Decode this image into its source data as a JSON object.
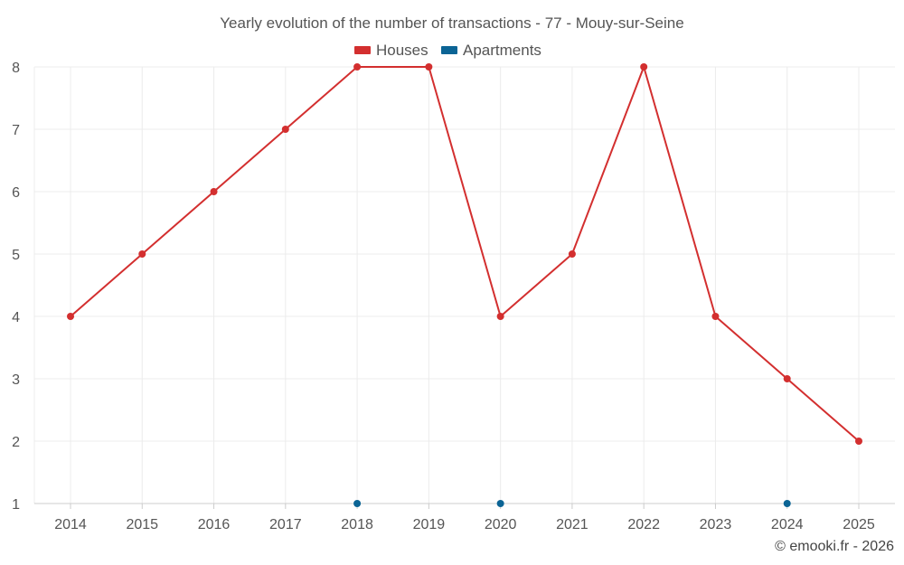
{
  "chart_data": {
    "type": "line",
    "title": "Yearly evolution of the number of transactions - 77 - Mouy-sur-Seine",
    "categories": [
      "2014",
      "2015",
      "2016",
      "2017",
      "2018",
      "2019",
      "2020",
      "2021",
      "2022",
      "2023",
      "2024",
      "2025"
    ],
    "ylim": [
      1,
      8
    ],
    "yticks": [
      "1",
      "2",
      "3",
      "4",
      "5",
      "6",
      "7",
      "8"
    ],
    "grid": true,
    "legend_position": "top-center",
    "series": [
      {
        "name": "Houses",
        "color": "#d32f2f",
        "values": [
          4,
          5,
          6,
          7,
          8,
          8,
          4,
          5,
          8,
          4,
          3,
          2
        ]
      },
      {
        "name": "Apartments",
        "color": "#0b6495",
        "values": [
          null,
          null,
          null,
          null,
          1,
          null,
          1,
          null,
          null,
          null,
          1,
          null
        ]
      }
    ]
  },
  "credit": "© emooki.fr - 2026"
}
